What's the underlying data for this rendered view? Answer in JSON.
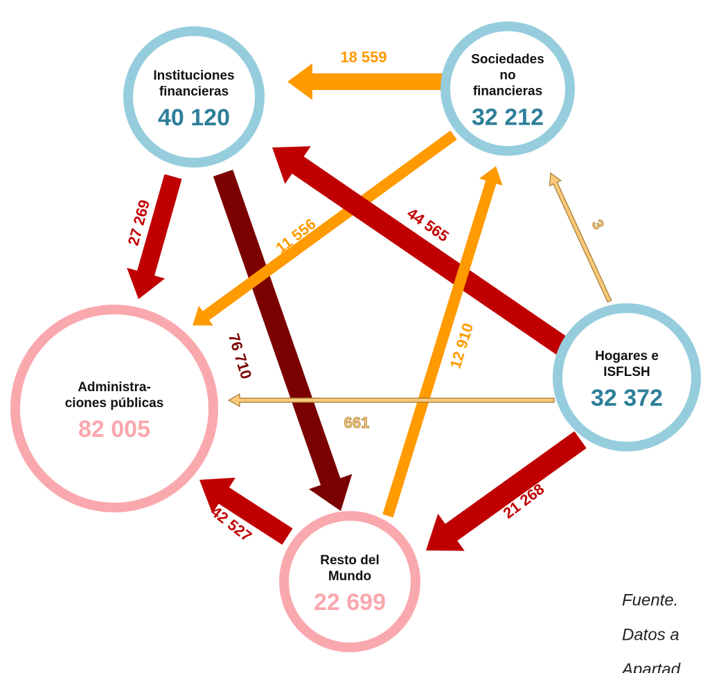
{
  "nodes": [
    {
      "lines": [
        "Instituciones",
        "financieras"
      ],
      "value": "40 120",
      "color": "#2e7f99",
      "ring": "#96cddd"
    },
    {
      "lines": [
        "Sociedades",
        "no",
        "financieras"
      ],
      "value": "32 212",
      "color": "#2e7f99",
      "ring": "#96cddd"
    },
    {
      "lines": [
        "Hogares e",
        "ISFLSH"
      ],
      "value": "32 372",
      "color": "#2e7f99",
      "ring": "#96cddd"
    },
    {
      "lines": [
        "Administra-",
        "ciones públicas"
      ],
      "value": "82 005",
      "color": "#f9a8ae",
      "ring": "#f9a8ae"
    },
    {
      "lines": [
        "Resto del",
        "Mundo"
      ],
      "value": "22 699",
      "color": "#f9a8ae",
      "ring": "#f9a8ae"
    }
  ],
  "arrows": [
    {
      "label": "18 559",
      "color": "#ff9a00"
    },
    {
      "label": "27 269",
      "color": "#c00000"
    },
    {
      "label": "76 710",
      "color": "#7b0000"
    },
    {
      "label": "11 556",
      "color": "#ff9a00"
    },
    {
      "label": "44 565",
      "color": "#c00000"
    },
    {
      "label": "3",
      "color": "#f9c878"
    },
    {
      "label": "12 910",
      "color": "#ff9a00"
    },
    {
      "label": "661",
      "color": "#f9c878"
    },
    {
      "label": "21 268",
      "color": "#c00000"
    },
    {
      "label": "42 527",
      "color": "#c00000"
    }
  ],
  "source": [
    "Fuente.",
    "Datos a",
    "Apartad"
  ]
}
